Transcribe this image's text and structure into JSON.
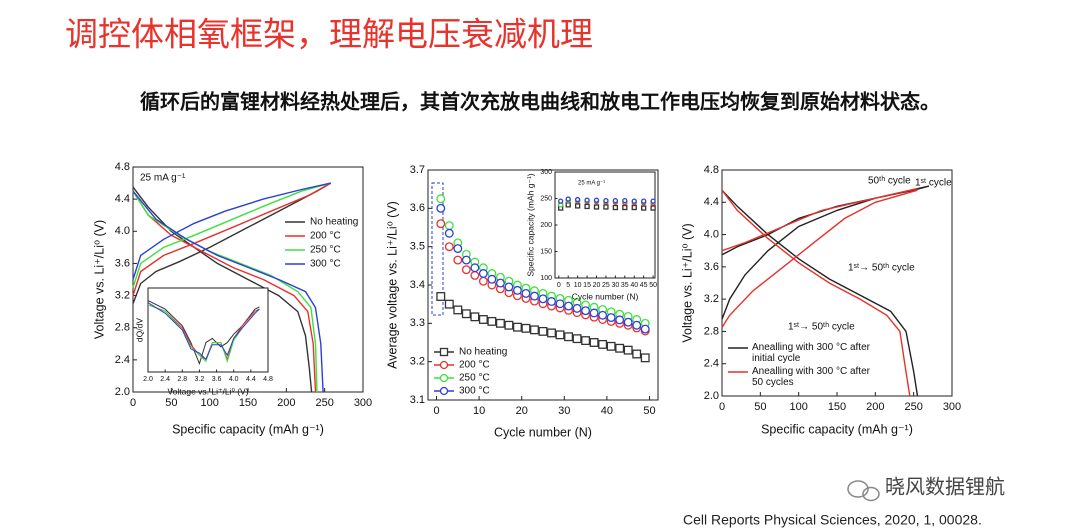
{
  "slide": {
    "title": "调控体相氧框架，理解电压衰减机理",
    "subtitle": "循环后的富锂材料经热处理后，其首次充放电曲线和放电工作电压均恢复到原始材料状态。",
    "watermark": "晓风数据锂航",
    "citation": "Cell Reports Physical Sciences, 2020, 1, 00028."
  },
  "chart_data": [
    {
      "type": "line",
      "x_label": "Specific capacity (mAh g⁻¹)",
      "y_label": "Voltage vs. Li⁺/Li⁰ (V)",
      "annotations": [
        "25 mA g⁻¹"
      ],
      "legend": "center right",
      "grid": false,
      "xlim": [
        0,
        300
      ],
      "xticks": [
        0,
        50,
        100,
        150,
        200,
        250,
        300
      ],
      "ylim": [
        2,
        4.8
      ],
      "yticks": [
        {
          "value": 2,
          "label": "2.0"
        },
        2.4,
        2.8,
        3.2,
        3.6,
        {
          "value": 4,
          "label": "4.0"
        },
        4.4,
        4.8
      ],
      "series": [
        {
          "name": "No heating",
          "color": "#333333",
          "x": [
            0,
            10,
            30,
            60,
            100,
            150,
            200,
            240,
            258,
            null,
            0,
            20,
            50,
            80,
            110,
            150,
            190,
            215,
            225,
            230,
            233
          ],
          "values": [
            3.1,
            3.35,
            3.5,
            3.62,
            3.8,
            4.05,
            4.3,
            4.5,
            4.6,
            null,
            4.55,
            4.3,
            4.0,
            3.8,
            3.6,
            3.4,
            3.2,
            3.0,
            2.7,
            2.3,
            2.0
          ]
        },
        {
          "name": "200 °C",
          "color": "#e8312a",
          "x": [
            0,
            10,
            40,
            80,
            130,
            180,
            230,
            258,
            null,
            0,
            20,
            50,
            90,
            130,
            170,
            210,
            228,
            235,
            238
          ],
          "values": [
            3.2,
            3.5,
            3.7,
            3.85,
            4.05,
            4.25,
            4.45,
            4.6,
            null,
            4.5,
            4.2,
            3.95,
            3.75,
            3.55,
            3.4,
            3.2,
            3.0,
            2.6,
            2.0
          ]
        },
        {
          "name": "250 °C",
          "color": "#3ee03e",
          "x": [
            0,
            10,
            40,
            80,
            130,
            180,
            220,
            258,
            null,
            0,
            20,
            60,
            100,
            140,
            180,
            215,
            232,
            238,
            240
          ],
          "values": [
            3.3,
            3.6,
            3.8,
            3.95,
            4.15,
            4.35,
            4.5,
            4.6,
            null,
            4.5,
            4.2,
            3.95,
            3.75,
            3.6,
            3.45,
            3.25,
            3.05,
            2.6,
            2.0
          ]
        },
        {
          "name": "300 °C",
          "color": "#2b3fd6",
          "x": [
            0,
            10,
            40,
            80,
            120,
            170,
            220,
            258,
            null,
            0,
            30,
            70,
            110,
            150,
            190,
            225,
            238,
            245,
            248
          ],
          "values": [
            3.4,
            3.7,
            3.9,
            4.1,
            4.25,
            4.4,
            4.52,
            4.6,
            null,
            4.5,
            4.15,
            3.9,
            3.7,
            3.55,
            3.4,
            3.25,
            3.05,
            2.6,
            2.0
          ]
        }
      ]
    },
    {
      "type": "line",
      "x_label": "Voltage vs. Li⁺/Li⁰ (V)",
      "y_label": "dQ/dV",
      "grid": false,
      "xlim": [
        2,
        4.8
      ],
      "xticks": [
        {
          "value": 2,
          "label": "2.0"
        },
        2.4,
        2.8,
        3.2,
        3.6,
        {
          "value": 4,
          "label": "4.0"
        },
        4.4,
        4.8
      ],
      "ylim": [
        -1,
        1
      ],
      "x": [
        2,
        2.4,
        2.8,
        3,
        3.2,
        3.35,
        3.5,
        3.7,
        3.85,
        4,
        4.2,
        4.5,
        4.6
      ],
      "series": [
        {
          "color": "#333333",
          "values": [
            0.7,
            0.5,
            0.1,
            -0.3,
            -0.8,
            -0.3,
            -0.2,
            -0.4,
            -0.3,
            -0.1,
            0.1,
            0.5,
            0.55
          ]
        },
        {
          "color": "#e8312a",
          "values": [
            0.6,
            0.45,
            0.05,
            -0.35,
            -0.6,
            -0.7,
            -0.3,
            -0.3,
            -0.7,
            -0.2,
            0.1,
            0.45,
            0.5
          ]
        },
        {
          "color": "#3ee03e",
          "values": [
            0.6,
            0.45,
            0,
            -0.4,
            -0.6,
            -0.75,
            -0.3,
            -0.3,
            -0.75,
            -0.25,
            0.05,
            0.4,
            0.5
          ]
        },
        {
          "color": "#2b3fd6",
          "values": [
            0.65,
            0.4,
            0,
            -0.45,
            -0.55,
            -0.7,
            -0.35,
            -0.35,
            -0.6,
            -0.2,
            0.05,
            0.4,
            0.5
          ]
        }
      ]
    },
    {
      "type": "scatter",
      "x_label": "Cycle number (N)",
      "y_label": "Average voltage vs. Li⁺/Li⁰ (V)",
      "legend": "lower left",
      "grid": false,
      "xlim": [
        -2,
        52
      ],
      "xticks": [
        0,
        10,
        20,
        30,
        40,
        50
      ],
      "ylim": [
        3.1,
        3.7
      ],
      "yticks": [
        3.1,
        3.2,
        3.3,
        3.4,
        3.5,
        3.6,
        3.7
      ],
      "x": [
        1,
        3,
        5,
        7,
        9,
        11,
        13,
        15,
        17,
        19,
        21,
        23,
        25,
        27,
        29,
        31,
        33,
        35,
        37,
        39,
        41,
        43,
        45,
        47,
        49
      ],
      "series": [
        {
          "name": "No heating",
          "color": "#333333",
          "marker": "square",
          "values": [
            3.37,
            3.35,
            3.335,
            3.325,
            3.317,
            3.31,
            3.305,
            3.3,
            3.295,
            3.29,
            3.287,
            3.283,
            3.279,
            3.275,
            3.27,
            3.265,
            3.26,
            3.255,
            3.25,
            3.245,
            3.24,
            3.235,
            3.23,
            3.22,
            3.21
          ]
        },
        {
          "name": "200 °C",
          "color": "#e8312a",
          "marker": "circle",
          "values": [
            3.56,
            3.5,
            3.465,
            3.44,
            3.425,
            3.41,
            3.4,
            3.39,
            3.38,
            3.372,
            3.365,
            3.358,
            3.351,
            3.345,
            3.34,
            3.334,
            3.328,
            3.322,
            3.316,
            3.31,
            3.305,
            3.3,
            3.295,
            3.288,
            3.28
          ]
        },
        {
          "name": "250 °C",
          "color": "#3ee03e",
          "marker": "circle",
          "values": [
            3.625,
            3.555,
            3.51,
            3.48,
            3.46,
            3.445,
            3.43,
            3.42,
            3.41,
            3.4,
            3.392,
            3.385,
            3.378,
            3.371,
            3.365,
            3.36,
            3.354,
            3.348,
            3.342,
            3.336,
            3.33,
            3.324,
            3.318,
            3.31,
            3.3
          ]
        },
        {
          "name": "300 °C",
          "color": "#2b3fd6",
          "marker": "circle",
          "values": [
            3.6,
            3.535,
            3.495,
            3.465,
            3.445,
            3.43,
            3.415,
            3.405,
            3.395,
            3.386,
            3.378,
            3.371,
            3.364,
            3.357,
            3.351,
            3.345,
            3.339,
            3.333,
            3.327,
            3.321,
            3.315,
            3.309,
            3.303,
            3.295,
            3.285
          ]
        }
      ]
    },
    {
      "type": "scatter",
      "x_label": "Cycle number (N)",
      "y_label": "Specific capacity (mAh g⁻¹)",
      "annotations": [
        "25 mA g⁻¹"
      ],
      "grid": false,
      "xlim": [
        -2,
        51
      ],
      "xticks": [
        0,
        5,
        10,
        15,
        20,
        25,
        30,
        35,
        40,
        45,
        50
      ],
      "ylim": [
        100,
        300
      ],
      "yticks": [
        100,
        150,
        200,
        250,
        300
      ],
      "x": [
        1,
        5,
        10,
        15,
        20,
        25,
        30,
        35,
        40,
        45,
        50
      ],
      "series": [
        {
          "color": "#333333",
          "marker": "square",
          "values": [
            232,
            238,
            236,
            235,
            234,
            234,
            233,
            233,
            233,
            232,
            232
          ]
        },
        {
          "color": "#e8312a",
          "marker": "circle",
          "values": [
            240,
            246,
            245,
            244,
            244,
            243,
            243,
            242,
            242,
            242,
            241
          ]
        },
        {
          "color": "#3ee03e",
          "marker": "circle",
          "values": [
            238,
            247,
            247,
            246,
            246,
            245,
            245,
            245,
            244,
            244,
            244
          ]
        },
        {
          "color": "#2b3fd6",
          "marker": "circle",
          "values": [
            245,
            249,
            248,
            247,
            247,
            246,
            246,
            246,
            245,
            245,
            245
          ]
        }
      ]
    },
    {
      "type": "line",
      "x_label": "Specific capacity (mAh g⁻¹)",
      "y_label": "Voltage vs. Li⁺/Li⁰ (V)",
      "annotations": [
        "50ᵗʰ cycle",
        "1ˢᵗ cycle",
        "1ˢᵗ→ 50ᵗʰ cycle",
        "1ˢᵗ→ 50ᵗʰ cycle"
      ],
      "legend": "lower left",
      "grid": false,
      "xlim": [
        0,
        300
      ],
      "xticks": [
        0,
        50,
        100,
        150,
        200,
        250,
        300
      ],
      "ylim": [
        2,
        4.8
      ],
      "yticks": [
        {
          "value": 2,
          "label": "2.0"
        },
        2.4,
        2.8,
        3.2,
        3.6,
        {
          "value": 4,
          "label": "4.0"
        },
        4.4,
        4.8
      ],
      "series": [
        {
          "name": "Anealling with 300 °C after initial cycle",
          "color": "#222222",
          "x": [
            0,
            10,
            30,
            60,
            100,
            150,
            200,
            250,
            270,
            null,
            0,
            20,
            60,
            100,
            150,
            200,
            270,
            null,
            0,
            20,
            60,
            100,
            140,
            180,
            220,
            240,
            250,
            255
          ],
          "values": [
            2.95,
            3.2,
            3.5,
            3.8,
            4.1,
            4.3,
            4.45,
            4.55,
            4.6,
            null,
            3.75,
            3.85,
            4.0,
            4.2,
            4.35,
            4.45,
            4.6,
            null,
            4.55,
            4.35,
            4.0,
            3.7,
            3.45,
            3.25,
            3.05,
            2.8,
            2.3,
            2.0
          ]
        },
        {
          "name": "Anealling with 300 °C after 50 cycles",
          "color": "#e8312a",
          "x": [
            0,
            10,
            40,
            80,
            120,
            160,
            200,
            255,
            null,
            0,
            30,
            80,
            130,
            200,
            255,
            null,
            0,
            20,
            60,
            100,
            140,
            180,
            215,
            232,
            240,
            245
          ],
          "values": [
            2.85,
            3.0,
            3.3,
            3.6,
            3.9,
            4.2,
            4.4,
            4.55,
            null,
            3.8,
            3.9,
            4.1,
            4.3,
            4.45,
            4.57,
            null,
            4.55,
            4.3,
            3.95,
            3.65,
            3.4,
            3.2,
            3.0,
            2.8,
            2.3,
            2.0
          ]
        }
      ]
    }
  ]
}
